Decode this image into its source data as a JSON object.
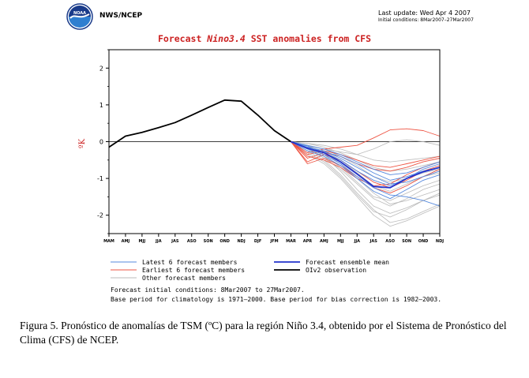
{
  "header": {
    "org": "NWS/NCEP",
    "last_update": "Last update: Wed Apr 4 2007",
    "initial_conditions": "Initial conditions: 8Mar2007–27Mar2007"
  },
  "logo": {
    "text": "NOAA"
  },
  "chart_data": {
    "type": "line",
    "title_parts": [
      "Forecast ",
      "Nino3.4",
      " SST anomalies from CFS"
    ],
    "ylabel": "ºK",
    "ylim": [
      -2.5,
      2.5
    ],
    "yticks": [
      -2,
      -1,
      0,
      1,
      2
    ],
    "categories": [
      "MAM",
      "AMJ",
      "MJJ",
      "JJA",
      "JAS",
      "ASO",
      "SON",
      "OND",
      "NDJ",
      "DJF",
      "JFM",
      "MAR",
      "APR",
      "AMJ",
      "MJJ",
      "JJA",
      "JAS",
      "ASO",
      "SON",
      "OND",
      "NDJ"
    ],
    "colors": {
      "observation": "#000000",
      "ensemble_mean": "#2233cc",
      "latest": "#5588dd",
      "earliest": "#ee5544",
      "other": "#bbbbbb"
    },
    "series": [
      {
        "name": "OIv2 observation",
        "role": "observation",
        "x": [
          0,
          1,
          2,
          3,
          4,
          5,
          6,
          7,
          8,
          9,
          10,
          11
        ],
        "y": [
          -0.15,
          0.15,
          0.25,
          0.38,
          0.52,
          0.72,
          0.93,
          1.13,
          1.1,
          0.72,
          0.3,
          0.0
        ]
      },
      {
        "name": "Forecast ensemble mean",
        "role": "ensemble_mean",
        "x": [
          11,
          12,
          13,
          14,
          15,
          16,
          17,
          18,
          19,
          20
        ],
        "y": [
          0.0,
          -0.18,
          -0.3,
          -0.55,
          -0.88,
          -1.22,
          -1.25,
          -1.0,
          -0.82,
          -0.7
        ]
      }
    ],
    "members": {
      "latest": [
        [
          0,
          -0.15,
          -0.25,
          -0.45,
          -0.7,
          -0.95,
          -1.15,
          -1.1,
          -0.95,
          -0.8
        ],
        [
          0,
          -0.1,
          -0.2,
          -0.35,
          -0.55,
          -0.75,
          -0.9,
          -0.85,
          -0.7,
          -0.55
        ],
        [
          0,
          -0.2,
          -0.35,
          -0.6,
          -0.95,
          -1.25,
          -1.45,
          -1.5,
          -1.6,
          -1.75
        ],
        [
          0,
          -0.12,
          -0.3,
          -0.5,
          -0.8,
          -1.05,
          -1.2,
          -1.0,
          -0.75,
          -0.6
        ],
        [
          0,
          -0.18,
          -0.28,
          -0.4,
          -0.6,
          -0.85,
          -1.05,
          -0.95,
          -0.8,
          -0.7
        ],
        [
          0,
          -0.25,
          -0.4,
          -0.65,
          -1.0,
          -1.35,
          -1.55,
          -1.3,
          -1.05,
          -0.9
        ]
      ],
      "earliest": [
        [
          0,
          -0.55,
          -0.35,
          -0.5,
          -0.8,
          -1.1,
          -1.25,
          -1.05,
          -0.8,
          -0.65
        ],
        [
          0,
          -0.45,
          -0.3,
          -0.4,
          -0.6,
          -0.75,
          -0.8,
          -0.7,
          -0.55,
          -0.45
        ],
        [
          0,
          -0.3,
          -0.2,
          -0.15,
          -0.1,
          0.1,
          0.32,
          0.35,
          0.3,
          0.15
        ],
        [
          0,
          -0.6,
          -0.45,
          -0.65,
          -0.95,
          -1.25,
          -1.4,
          -1.2,
          -0.95,
          -0.75
        ],
        [
          0,
          -0.4,
          -0.5,
          -0.7,
          -1.0,
          -1.2,
          -1.15,
          -0.9,
          -0.7,
          -0.55
        ],
        [
          0,
          -0.35,
          -0.25,
          -0.35,
          -0.5,
          -0.65,
          -0.7,
          -0.6,
          -0.5,
          -0.4
        ]
      ],
      "other": [
        [
          0,
          -0.1,
          -0.3,
          -0.6,
          -1.0,
          -1.4,
          -1.7,
          -1.6,
          -1.45,
          -1.3
        ],
        [
          0,
          -0.2,
          -0.4,
          -0.8,
          -1.3,
          -1.75,
          -1.95,
          -1.8,
          -1.6,
          -1.45
        ],
        [
          0,
          -0.05,
          -0.15,
          -0.3,
          -0.5,
          -0.7,
          -0.8,
          -0.75,
          -0.65,
          -0.55
        ],
        [
          0,
          -0.25,
          -0.5,
          -0.9,
          -1.4,
          -1.85,
          -2.2,
          -2.1,
          -1.9,
          -1.7
        ],
        [
          0,
          -0.15,
          -0.35,
          -0.7,
          -1.1,
          -1.5,
          -1.6,
          -1.4,
          -1.2,
          -1.05
        ],
        [
          0,
          -0.3,
          -0.55,
          -0.95,
          -1.45,
          -1.9,
          -2.05,
          -1.85,
          -1.6,
          -1.4
        ],
        [
          0,
          -0.1,
          -0.2,
          -0.4,
          -0.65,
          -0.95,
          -1.1,
          -1.0,
          -0.85,
          -0.75
        ],
        [
          0,
          -0.2,
          -0.45,
          -0.75,
          -1.15,
          -1.55,
          -1.75,
          -1.55,
          -1.3,
          -1.15
        ],
        [
          0,
          -0.05,
          -0.1,
          -0.2,
          -0.35,
          -0.5,
          -0.55,
          -0.5,
          -0.45,
          -0.4
        ],
        [
          0,
          -0.35,
          -0.6,
          -1.0,
          -1.5,
          -2.0,
          -2.3,
          -2.15,
          -1.95,
          -1.75
        ],
        [
          0,
          -0.15,
          -0.25,
          -0.5,
          -0.85,
          -1.2,
          -1.35,
          -1.15,
          -0.95,
          -0.85
        ],
        [
          0,
          -0.12,
          -0.2,
          -0.28,
          -0.35,
          -0.2,
          0.0,
          0.05,
          0.0,
          -0.1
        ]
      ]
    },
    "legend": [
      {
        "label": "Latest 6 forecast members",
        "role": "latest"
      },
      {
        "label": "Forecast ensemble mean",
        "role": "ensemble_mean"
      },
      {
        "label": "Earliest 6 forecast members",
        "role": "earliest"
      },
      {
        "label": "OIv2 observation",
        "role": "observation"
      },
      {
        "label": "Other forecast members",
        "role": "other"
      }
    ],
    "notes": [
      "Forecast initial conditions: 8Mar2007 to 27Mar2007.",
      "Base period for climatology is 1971–2000. Base period for bias correction is 1982–2003."
    ]
  },
  "caption": "Figura 5. Pronóstico de anomalías de TSM (ºC) para la región Niño 3.4, obtenido por el Sistema de Pronóstico del Clima (CFS) de NCEP."
}
